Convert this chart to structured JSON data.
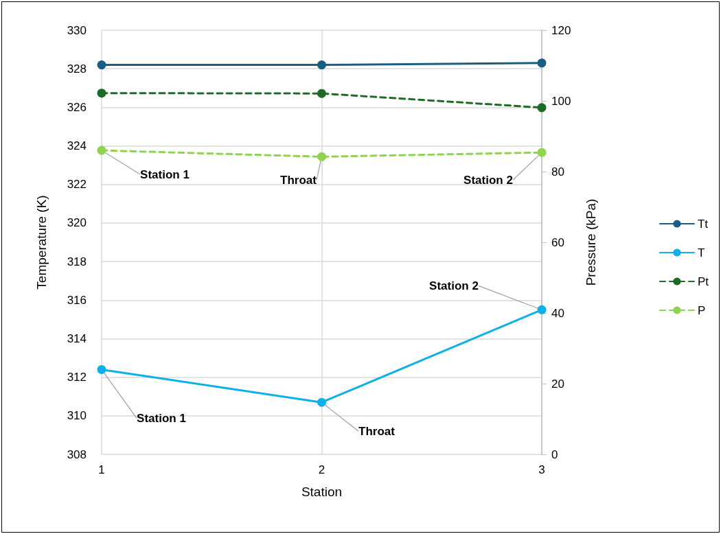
{
  "chart_data": {
    "type": "line",
    "xlabel": "Station",
    "ylabel": "Temperature (K)",
    "y2label": "Pressure (kPa)",
    "x": [
      1,
      2,
      3
    ],
    "xlim": [
      1,
      3
    ],
    "xticks": [
      1,
      2,
      3
    ],
    "ylim": [
      308,
      330
    ],
    "yticks": [
      308,
      310,
      312,
      314,
      316,
      318,
      320,
      322,
      324,
      326,
      328,
      330
    ],
    "y2lim": [
      0,
      120
    ],
    "y2ticks": [
      0,
      20,
      40,
      60,
      80,
      100,
      120
    ],
    "grid": true,
    "legend": "right",
    "marker": "circle",
    "series": [
      {
        "name": "Tt",
        "color": "#1a5e85",
        "values": [
          328.2,
          328.2,
          328.3
        ],
        "line_style": "solid"
      },
      {
        "name": "T",
        "color": "#0eb0ea",
        "values": [
          312.4,
          310.7,
          315.5
        ],
        "line_style": "solid"
      },
      {
        "name": "Pt",
        "color": "#1d6b24",
        "values": [
          102.2,
          102.1,
          98.1
        ],
        "axis": "y2",
        "line_style": "dashed"
      },
      {
        "name": "P",
        "color": "#8ed44e",
        "values": [
          86.0,
          84.2,
          85.4
        ],
        "axis": "y2",
        "line_style": "dashed"
      }
    ],
    "annotations": [
      {
        "text": "Station 1",
        "x": 1,
        "y": 323.77
      },
      {
        "text": "Throat",
        "x": 2,
        "y": 323.44
      },
      {
        "text": "Station 2",
        "x": 3,
        "y": 323.66
      },
      {
        "text": "Station 1",
        "x": 1,
        "y": 312.4
      },
      {
        "text": "Throat",
        "x": 2,
        "y": 310.7
      },
      {
        "text": "Station 2",
        "x": 3,
        "y": 315.5
      }
    ]
  }
}
